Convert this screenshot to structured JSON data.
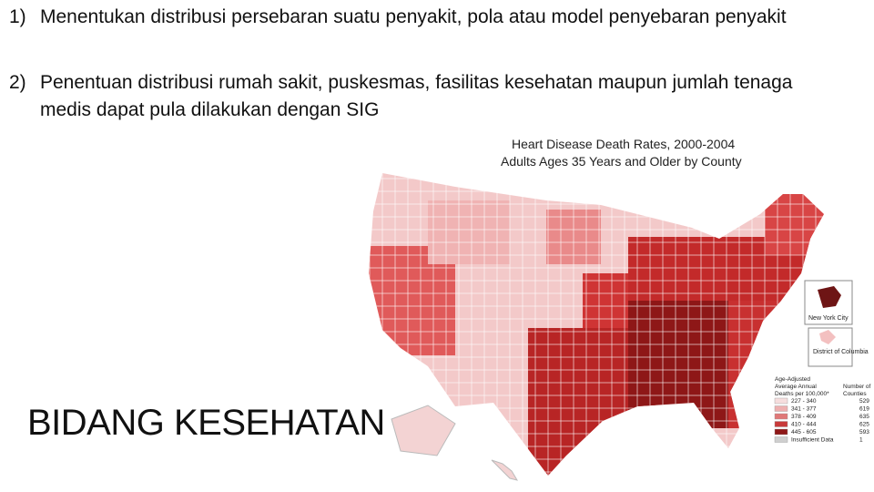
{
  "list": [
    {
      "number": "1)",
      "text": "Menentukan distribusi persebaran suatu penyakit, pola atau model penyebaran penyakit"
    },
    {
      "number": "2)",
      "text": "Penentuan distribusi rumah sakit, puskesmas, fasilitas kesehatan maupun jumlah tenaga medis dapat pula dilakukan dengan SIG"
    }
  ],
  "map": {
    "title": [
      "Heart Disease Death Rates, 2000-2004",
      "Adults Ages 35 Years and Older by County"
    ],
    "insets": [
      "New York City",
      "District of Columbia"
    ],
    "legend": {
      "header": [
        "Age-Adjusted",
        "Average Annual",
        "Deaths per 100,000*"
      ],
      "count_header": [
        "Number of",
        "Counties"
      ],
      "rows": [
        {
          "label": "227 - 340",
          "count": "529"
        },
        {
          "label": "341 - 377",
          "count": "619"
        },
        {
          "label": "378 - 409",
          "count": "635"
        },
        {
          "label": "410 - 444",
          "count": "625"
        },
        {
          "label": "445 - 605",
          "count": "593"
        },
        {
          "label": "Insufficient Data",
          "count": "1"
        }
      ]
    }
  },
  "heading": "BIDANG KESEHATAN"
}
